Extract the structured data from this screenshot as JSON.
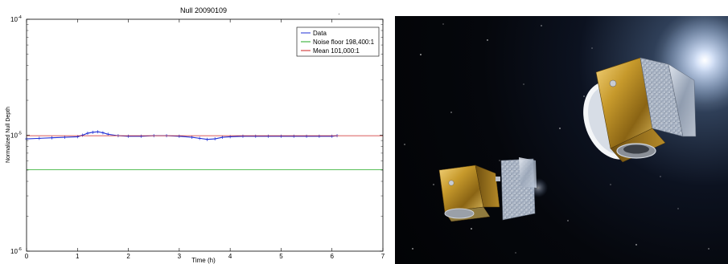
{
  "chart_data": {
    "type": "line",
    "title": "Null 20090109",
    "xlabel": "Time (h)",
    "ylabel": "Normalized Null Depth",
    "xlim": [
      0,
      7
    ],
    "ylim": [
      1e-06,
      0.0001
    ],
    "yscale": "log",
    "xticks": [
      0,
      1,
      2,
      3,
      4,
      5,
      6,
      7
    ],
    "yticks": [
      {
        "base": "10",
        "exp": "-6",
        "value": 1e-06
      },
      {
        "base": "10",
        "exp": "-5",
        "value": 1e-05
      },
      {
        "base": "10",
        "exp": "-4",
        "value": 0.0001
      }
    ],
    "legend_position": "top-right",
    "series": [
      {
        "name": "Data",
        "color": "#1f2fd6",
        "style": "markers",
        "x": [
          0,
          0.25,
          0.5,
          0.75,
          1.0,
          1.1,
          1.2,
          1.3,
          1.4,
          1.5,
          1.6,
          1.8,
          2.0,
          2.25,
          2.5,
          2.75,
          3.0,
          3.25,
          3.4,
          3.55,
          3.7,
          3.85,
          4.0,
          4.25,
          4.5,
          4.75,
          5.0,
          5.25,
          5.5,
          5.75,
          6.0,
          6.1
        ],
        "y": [
          9.3e-06,
          9.4e-06,
          9.5e-06,
          9.6e-06,
          9.7e-06,
          1e-05,
          1.04e-05,
          1.06e-05,
          1.07e-05,
          1.05e-05,
          1.02e-05,
          9.9e-06,
          9.8e-06,
          9.8e-06,
          9.9e-06,
          9.9e-06,
          9.8e-06,
          9.6e-06,
          9.4e-06,
          9.2e-06,
          9.3e-06,
          9.6e-06,
          9.7e-06,
          9.8e-06,
          9.8e-06,
          9.8e-06,
          9.8e-06,
          9.8e-06,
          9.8e-06,
          9.8e-06,
          9.8e-06,
          9.9e-06
        ]
      },
      {
        "name": "Noise floor 198,400:1",
        "color": "#22aa22",
        "style": "line",
        "x": [
          0,
          7
        ],
        "y": [
          5.04e-06,
          5.04e-06
        ]
      },
      {
        "name": "Mean 101,000:1",
        "color": "#cc2222",
        "style": "line",
        "x": [
          0,
          7
        ],
        "y": [
          9.9e-06,
          9.9e-06
        ]
      }
    ]
  }
}
